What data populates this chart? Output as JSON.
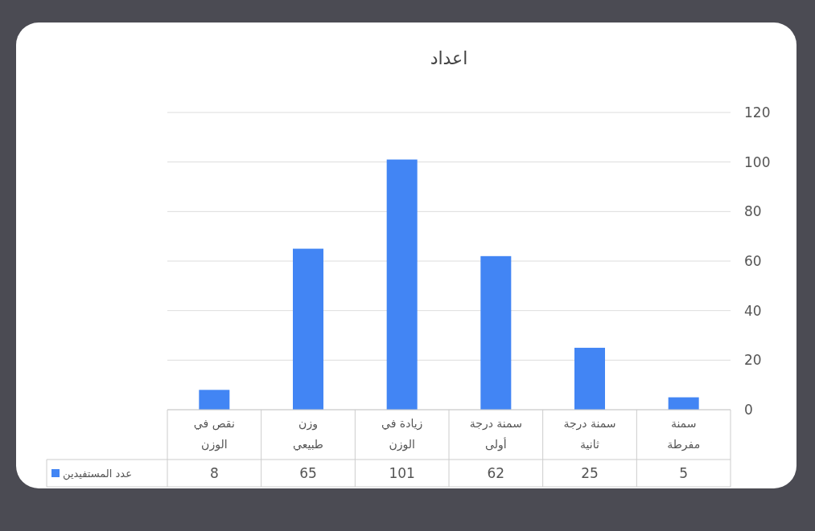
{
  "chart_data": {
    "type": "bar",
    "title": "اعداد",
    "categories": [
      "نقص في الوزن",
      "وزن طبيعي",
      "زيادة في الوزن",
      "سمنة درجة أولى",
      "سمنة درجة ثانية",
      "سمنة مفرطة"
    ],
    "series": [
      {
        "name": "عدد المستفيدين",
        "color": "#4285f4",
        "values": [
          8,
          65,
          101,
          62,
          25,
          5
        ]
      }
    ],
    "ylim": [
      0,
      120
    ],
    "yticks": [
      0,
      20,
      40,
      60,
      80,
      100,
      120
    ],
    "grid": "y",
    "data_labels": true,
    "legend": "bottom left"
  }
}
